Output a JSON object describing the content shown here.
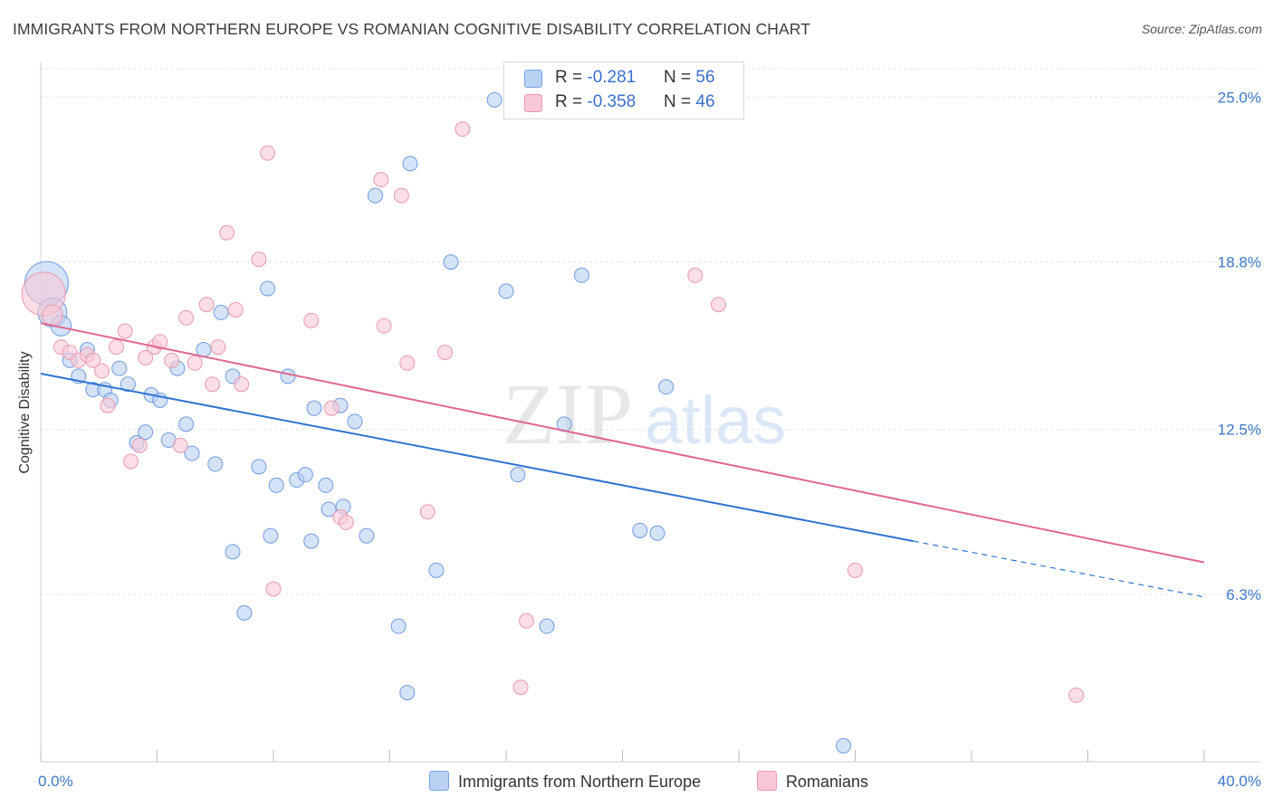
{
  "title": "IMMIGRANTS FROM NORTHERN EUROPE VS ROMANIAN COGNITIVE DISABILITY CORRELATION CHART",
  "source": "Source: ZipAtlas.com",
  "watermark": {
    "zip": "ZIP",
    "atlas": "atlas"
  },
  "legend": {
    "series": [
      {
        "r_label": "R = ",
        "r_value": "-0.281",
        "n_label": "N = ",
        "n_value": "56",
        "fill": "#b9d1f3",
        "stroke": "#7aa3e3"
      },
      {
        "r_label": "R = ",
        "r_value": "-0.358",
        "n_label": "N = ",
        "n_value": "46",
        "fill": "#f8c8d6",
        "stroke": "#e899b0"
      }
    ]
  },
  "bottom_legend": {
    "blue_label": "Immigrants from Northern Europe",
    "pink_label": "Romanians"
  },
  "colors": {
    "blue_fill": "#b9d1f3",
    "blue_stroke": "#6f9be0",
    "blue_line": "#2f74d0",
    "pink_fill": "#f8c8d6",
    "pink_stroke": "#e899b0",
    "pink_line": "#e0688f",
    "axis_text": "#3d78c8",
    "grid": "#e3e3e3"
  },
  "chart_data": {
    "type": "scatter",
    "title": "IMMIGRANTS FROM NORTHERN EUROPE VS ROMANIAN COGNITIVE DISABILITY CORRELATION CHART",
    "xlabel": "",
    "ylabel": "Cognitive Disability",
    "xlim": [
      0,
      40
    ],
    "ylim": [
      0,
      26
    ],
    "x_tick_labels": [
      {
        "value": 0,
        "label": "0.0%"
      },
      {
        "value": 40,
        "label": "40.0%"
      }
    ],
    "y_tick_labels": [
      {
        "value": 6.3,
        "label": "6.3%"
      },
      {
        "value": 12.5,
        "label": "12.5%"
      },
      {
        "value": 18.8,
        "label": "18.8%"
      },
      {
        "value": 25.0,
        "label": "25.0%"
      }
    ],
    "grid": true,
    "series": [
      {
        "name": "Immigrants from Northern Europe",
        "points": [
          [
            0.2,
            18.0,
            3
          ],
          [
            0.4,
            16.9,
            2
          ],
          [
            0.7,
            16.4,
            1.4
          ],
          [
            1.0,
            15.1,
            1
          ],
          [
            1.3,
            14.5,
            1
          ],
          [
            1.6,
            15.5,
            1
          ],
          [
            1.8,
            14.0,
            1
          ],
          [
            2.2,
            14.0,
            1
          ],
          [
            2.4,
            13.6,
            1
          ],
          [
            2.7,
            14.8,
            1
          ],
          [
            3.0,
            14.2,
            1
          ],
          [
            3.3,
            12.0,
            1
          ],
          [
            3.6,
            12.4,
            1
          ],
          [
            3.8,
            13.8,
            1
          ],
          [
            4.1,
            13.6,
            1
          ],
          [
            4.4,
            12.1,
            1
          ],
          [
            4.7,
            14.8,
            1
          ],
          [
            5.0,
            12.7,
            1
          ],
          [
            5.2,
            11.6,
            1
          ],
          [
            5.6,
            15.5,
            1
          ],
          [
            6.0,
            11.2,
            1
          ],
          [
            6.2,
            16.9,
            1
          ],
          [
            6.6,
            14.5,
            1
          ],
          [
            6.6,
            7.9,
            1
          ],
          [
            7.0,
            5.6,
            1
          ],
          [
            7.5,
            11.1,
            1
          ],
          [
            7.8,
            17.8,
            1
          ],
          [
            7.9,
            8.5,
            1
          ],
          [
            8.1,
            10.4,
            1
          ],
          [
            8.5,
            14.5,
            1
          ],
          [
            8.8,
            10.6,
            1
          ],
          [
            9.1,
            10.8,
            1
          ],
          [
            9.3,
            8.3,
            1
          ],
          [
            9.4,
            13.3,
            1
          ],
          [
            9.8,
            10.4,
            1
          ],
          [
            9.9,
            9.5,
            1
          ],
          [
            10.3,
            13.4,
            1
          ],
          [
            10.4,
            9.6,
            1
          ],
          [
            10.8,
            12.8,
            1
          ],
          [
            11.2,
            8.5,
            1
          ],
          [
            11.5,
            21.3,
            1
          ],
          [
            12.3,
            5.1,
            1
          ],
          [
            12.6,
            2.6,
            1
          ],
          [
            12.7,
            22.5,
            1
          ],
          [
            13.6,
            7.2,
            1
          ],
          [
            14.1,
            18.8,
            1
          ],
          [
            15.6,
            24.9,
            1
          ],
          [
            16.0,
            17.7,
            1
          ],
          [
            16.4,
            10.8,
            1
          ],
          [
            17.4,
            5.1,
            1
          ],
          [
            18.0,
            12.7,
            1
          ],
          [
            18.6,
            18.3,
            1
          ],
          [
            20.6,
            8.7,
            1
          ],
          [
            21.2,
            8.6,
            1
          ],
          [
            21.5,
            14.1,
            1
          ],
          [
            27.6,
            0.6,
            1
          ]
        ]
      },
      {
        "name": "Romanians",
        "points": [
          [
            0.1,
            17.6,
            3
          ],
          [
            0.4,
            16.8,
            1.4
          ],
          [
            0.7,
            15.6,
            1
          ],
          [
            1.0,
            15.4,
            1
          ],
          [
            1.3,
            15.1,
            1
          ],
          [
            1.6,
            15.3,
            1
          ],
          [
            1.8,
            15.1,
            1
          ],
          [
            2.1,
            14.7,
            1
          ],
          [
            2.3,
            13.4,
            1
          ],
          [
            2.6,
            15.6,
            1
          ],
          [
            2.9,
            16.2,
            1
          ],
          [
            3.1,
            11.3,
            1
          ],
          [
            3.4,
            11.9,
            1
          ],
          [
            3.6,
            15.2,
            1
          ],
          [
            3.9,
            15.6,
            1
          ],
          [
            4.1,
            15.8,
            1
          ],
          [
            4.5,
            15.1,
            1
          ],
          [
            4.8,
            11.9,
            1
          ],
          [
            5.0,
            16.7,
            1
          ],
          [
            5.3,
            15.0,
            1
          ],
          [
            5.7,
            17.2,
            1
          ],
          [
            5.9,
            14.2,
            1
          ],
          [
            6.1,
            15.6,
            1
          ],
          [
            6.4,
            19.9,
            1
          ],
          [
            6.7,
            17.0,
            1
          ],
          [
            6.9,
            14.2,
            1
          ],
          [
            7.5,
            18.9,
            1
          ],
          [
            7.8,
            22.9,
            1
          ],
          [
            8.0,
            6.5,
            1
          ],
          [
            9.3,
            16.6,
            1
          ],
          [
            10.0,
            13.3,
            1
          ],
          [
            10.3,
            9.2,
            1
          ],
          [
            10.5,
            9.0,
            1
          ],
          [
            11.7,
            21.9,
            1
          ],
          [
            11.8,
            16.4,
            1
          ],
          [
            12.4,
            21.3,
            1
          ],
          [
            12.6,
            15.0,
            1
          ],
          [
            13.3,
            9.4,
            1
          ],
          [
            13.9,
            15.4,
            1
          ],
          [
            14.5,
            23.8,
            1
          ],
          [
            16.5,
            2.8,
            1
          ],
          [
            16.7,
            5.3,
            1
          ],
          [
            22.5,
            18.3,
            1
          ],
          [
            23.3,
            17.2,
            1
          ],
          [
            28.0,
            7.2,
            1
          ],
          [
            35.6,
            2.5,
            1
          ]
        ]
      }
    ],
    "trendlines": [
      {
        "series": "Immigrants from Northern Europe",
        "x": [
          0,
          30,
          40
        ],
        "y": [
          14.6,
          8.3,
          6.2
        ],
        "dashed_after_x": 30
      },
      {
        "series": "Romanians",
        "x": [
          0,
          40
        ],
        "y": [
          16.5,
          7.5
        ]
      }
    ]
  }
}
